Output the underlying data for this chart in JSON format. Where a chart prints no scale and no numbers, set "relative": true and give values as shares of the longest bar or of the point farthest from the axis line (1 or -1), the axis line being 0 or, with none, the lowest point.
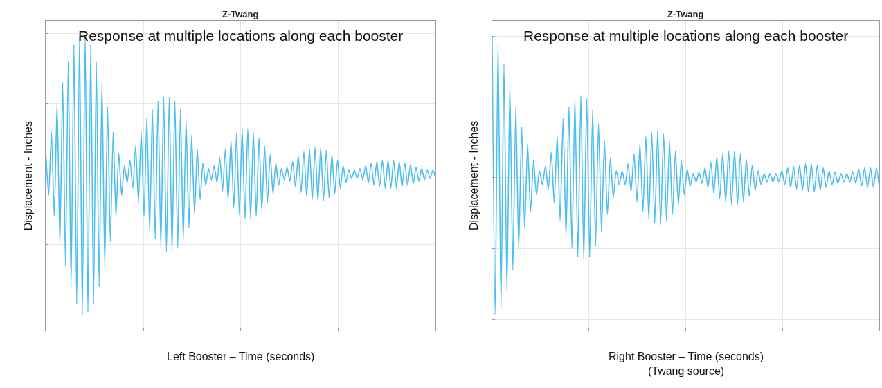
{
  "chart_data": [
    {
      "type": "line",
      "relative": true,
      "title": "Z-Twang",
      "xlabel": "Left Booster – Time (seconds)",
      "ylabel": "Displacement - Inches",
      "annotations": [
        "Response at multiple locations along each booster"
      ],
      "grid": true,
      "categories": [
        null,
        null,
        null,
        null,
        null,
        null,
        null,
        null,
        null,
        null,
        null,
        null,
        null,
        null,
        null,
        null,
        null,
        null,
        null,
        null,
        null,
        null,
        null,
        null,
        null,
        null,
        null,
        null,
        null,
        null,
        null,
        null,
        null,
        null,
        null,
        null,
        null,
        null,
        null,
        null,
        null,
        null,
        null,
        null,
        null,
        null,
        null,
        null,
        null,
        null,
        null,
        null,
        null,
        null,
        null,
        null,
        null,
        null,
        null,
        null,
        null,
        null,
        null,
        null,
        null,
        null,
        null,
        null,
        null,
        null,
        null,
        null,
        null,
        null,
        null,
        null,
        null,
        null,
        null,
        null,
        null,
        null,
        null,
        null,
        null,
        null,
        null,
        null,
        null,
        null,
        null,
        null,
        null,
        null,
        null,
        null,
        null,
        null,
        null,
        null,
        null,
        null,
        null,
        null,
        null,
        null,
        null,
        null,
        null,
        null,
        null,
        null,
        null,
        null,
        null,
        null,
        null,
        null,
        null,
        null,
        null,
        null,
        null,
        null,
        null,
        null,
        null,
        null,
        null,
        null,
        null,
        null,
        null,
        null,
        null,
        null,
        null,
        null,
        null,
        null
      ],
      "series": [
        {
          "color": "#4dbeee",
          "values": [
            0.15,
            -0.15,
            0.3,
            -0.3,
            0.5,
            -0.5,
            0.65,
            -0.65,
            0.8,
            -0.8,
            0.92,
            -0.92,
            0.98,
            -1.0,
            0.98,
            -0.98,
            0.92,
            -0.92,
            0.8,
            -0.8,
            0.65,
            -0.65,
            0.48,
            -0.48,
            0.3,
            -0.3,
            0.15,
            -0.15,
            0.06,
            -0.06,
            0.1,
            -0.1,
            0.2,
            -0.2,
            0.3,
            -0.3,
            0.4,
            -0.4,
            0.46,
            -0.46,
            0.52,
            -0.52,
            0.55,
            -0.55,
            0.55,
            -0.55,
            0.52,
            -0.52,
            0.46,
            -0.46,
            0.38,
            -0.38,
            0.28,
            -0.28,
            0.18,
            -0.18,
            0.08,
            -0.08,
            0.04,
            -0.04,
            0.06,
            -0.06,
            0.12,
            -0.12,
            0.18,
            -0.18,
            0.24,
            -0.24,
            0.29,
            -0.29,
            0.32,
            -0.32,
            0.32,
            -0.32,
            0.3,
            -0.3,
            0.26,
            -0.26,
            0.2,
            -0.2,
            0.14,
            -0.14,
            0.08,
            -0.08,
            0.04,
            -0.04,
            0.05,
            -0.05,
            0.09,
            -0.09,
            0.13,
            -0.13,
            0.16,
            -0.16,
            0.18,
            -0.18,
            0.19,
            -0.19,
            0.19,
            -0.19,
            0.17,
            -0.17,
            0.14,
            -0.14,
            0.1,
            -0.1,
            0.06,
            -0.06,
            0.03,
            -0.03,
            0.03,
            -0.03,
            0.04,
            -0.04,
            0.06,
            -0.06,
            0.08,
            -0.08,
            0.09,
            -0.09,
            0.1,
            -0.1,
            0.1,
            -0.1,
            0.1,
            -0.1,
            0.09,
            -0.09,
            0.08,
            -0.08,
            0.07,
            -0.07,
            0.05,
            -0.05,
            0.04,
            -0.04,
            0.03,
            -0.03,
            0.03,
            -0.03
          ]
        }
      ]
    },
    {
      "type": "line",
      "relative": true,
      "title": "Z-Twang",
      "xlabel": "Right Booster – Time (seconds)\n(Twang source)",
      "ylabel": "Displacement - Inches",
      "annotations": [
        "Response at multiple locations along each booster"
      ],
      "grid": true,
      "categories": [
        null,
        null,
        null,
        null,
        null,
        null,
        null,
        null,
        null,
        null,
        null,
        null,
        null,
        null,
        null,
        null,
        null,
        null,
        null,
        null,
        null,
        null,
        null,
        null,
        null,
        null,
        null,
        null,
        null,
        null,
        null,
        null,
        null,
        null,
        null,
        null,
        null,
        null,
        null,
        null,
        null,
        null,
        null,
        null,
        null,
        null,
        null,
        null,
        null,
        null,
        null,
        null,
        null,
        null,
        null,
        null,
        null,
        null,
        null,
        null,
        null,
        null,
        null,
        null,
        null,
        null,
        null,
        null,
        null,
        null,
        null,
        null,
        null,
        null,
        null,
        null,
        null,
        null,
        null,
        null,
        null,
        null,
        null,
        null,
        null,
        null,
        null,
        null,
        null,
        null,
        null,
        null,
        null,
        null,
        null,
        null,
        null,
        null,
        null,
        null,
        null,
        null,
        null,
        null,
        null,
        null,
        null,
        null,
        null,
        null,
        null,
        null,
        null,
        null,
        null,
        null,
        null,
        null,
        null,
        null,
        null,
        null,
        null,
        null,
        null,
        null,
        null,
        null,
        null,
        null,
        null,
        null
      ],
      "series": [
        {
          "color": "#4dbeee",
          "values": [
            1.0,
            -0.97,
            0.95,
            -0.92,
            0.8,
            -0.8,
            0.65,
            -0.65,
            0.5,
            -0.5,
            0.36,
            -0.36,
            0.24,
            -0.24,
            0.12,
            -0.12,
            0.05,
            -0.05,
            0.08,
            -0.08,
            0.18,
            -0.18,
            0.3,
            -0.3,
            0.42,
            -0.42,
            0.5,
            -0.5,
            0.56,
            -0.56,
            0.58,
            -0.58,
            0.56,
            -0.56,
            0.48,
            -0.48,
            0.38,
            -0.38,
            0.26,
            -0.26,
            0.14,
            -0.14,
            0.05,
            -0.05,
            0.05,
            -0.05,
            0.1,
            -0.1,
            0.17,
            -0.17,
            0.24,
            -0.24,
            0.29,
            -0.29,
            0.32,
            -0.32,
            0.33,
            -0.33,
            0.31,
            -0.31,
            0.26,
            -0.26,
            0.19,
            -0.19,
            0.12,
            -0.12,
            0.06,
            -0.06,
            0.03,
            -0.03,
            0.04,
            -0.04,
            0.07,
            -0.07,
            0.11,
            -0.11,
            0.15,
            -0.15,
            0.17,
            -0.17,
            0.19,
            -0.19,
            0.19,
            -0.19,
            0.17,
            -0.17,
            0.13,
            -0.13,
            0.09,
            -0.09,
            0.05,
            -0.05,
            0.03,
            -0.03,
            0.03,
            -0.03,
            0.03,
            -0.03,
            0.05,
            -0.05,
            0.07,
            -0.07,
            0.08,
            -0.08,
            0.09,
            -0.09,
            0.1,
            -0.1,
            0.1,
            -0.1,
            0.09,
            -0.09,
            0.07,
            -0.07,
            0.05,
            -0.05,
            0.04,
            -0.04,
            0.03,
            -0.03,
            0.03,
            -0.03,
            0.04,
            -0.04,
            0.06,
            -0.06,
            0.07,
            -0.07,
            0.07,
            -0.07,
            0.07,
            -0.07
          ]
        }
      ]
    }
  ]
}
